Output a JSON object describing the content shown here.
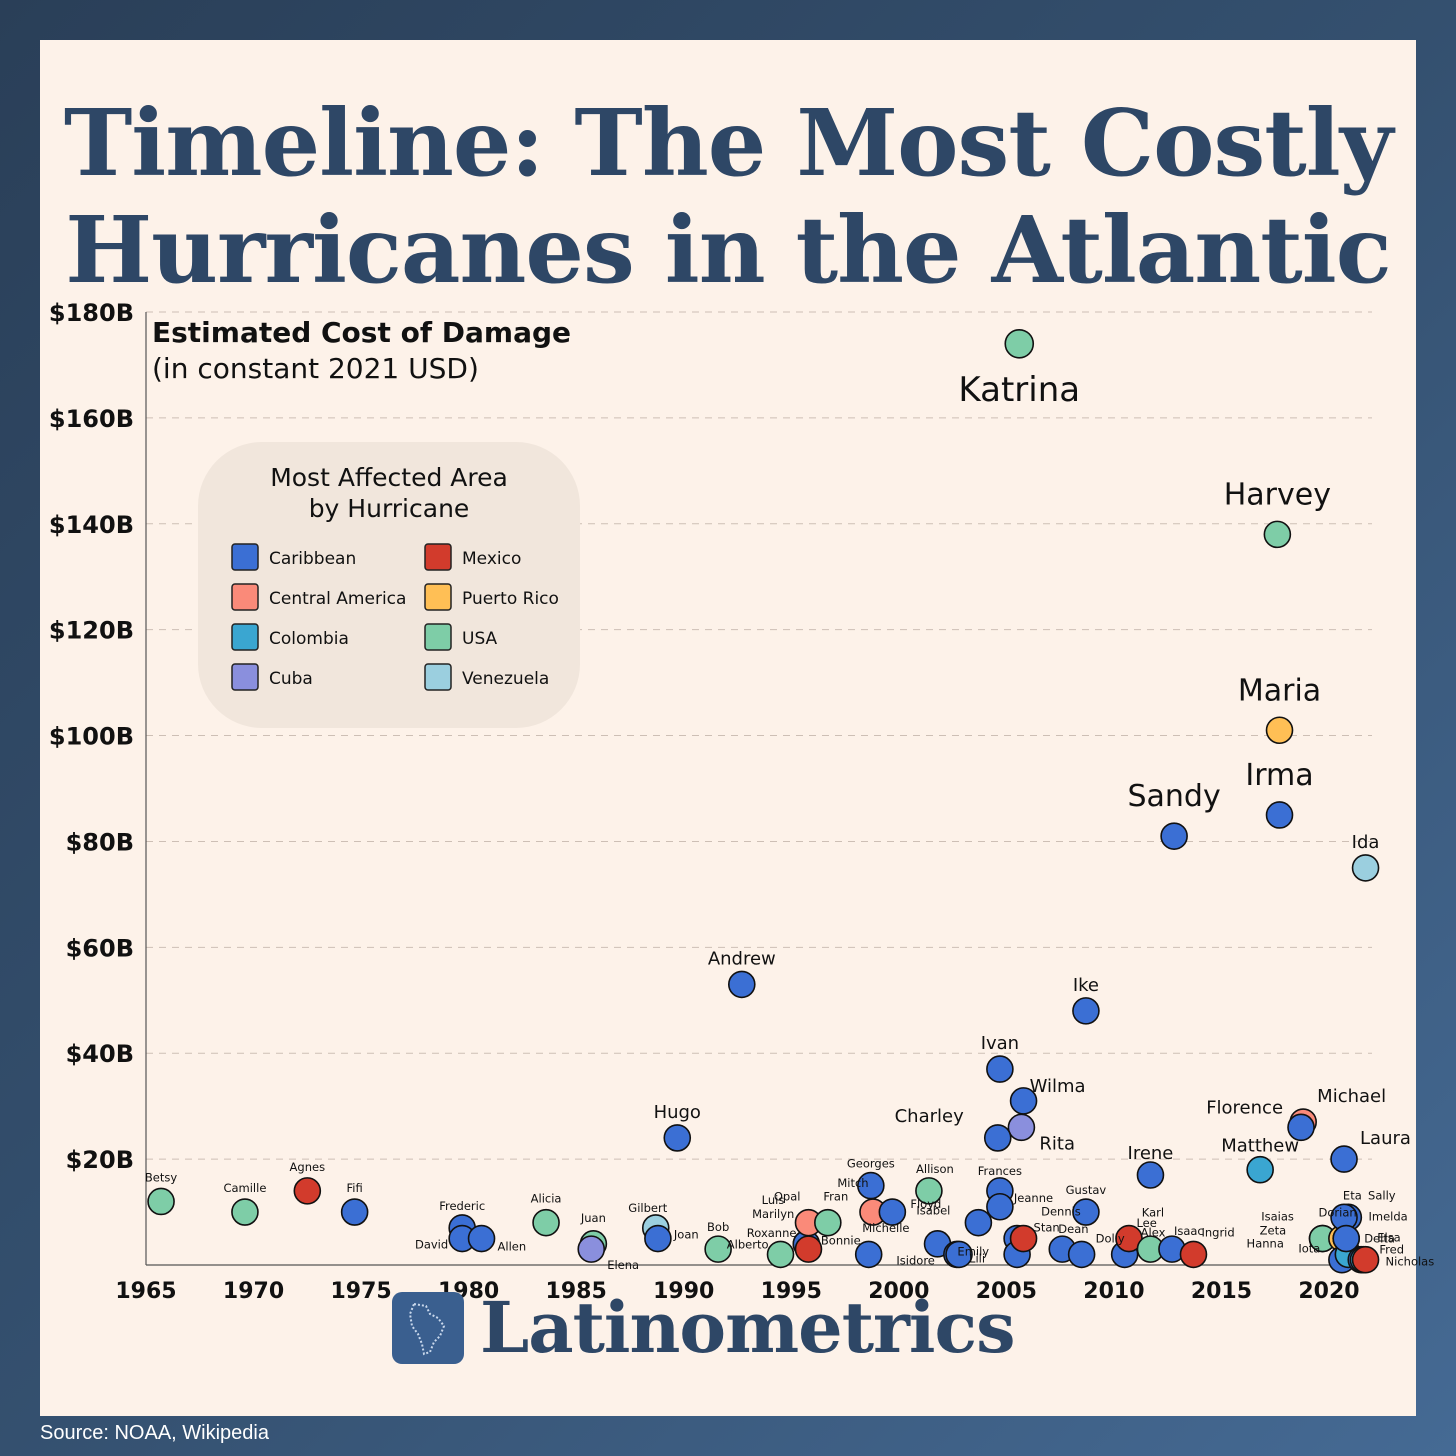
{
  "title_line1": "Timeline: The Most Costly",
  "title_line2": "Hurricanes in the Atlantic",
  "subtitle_line1": "Estimated Cost of Damage",
  "subtitle_line2": "(in constant 2021 USD)",
  "legend": {
    "title_line1": "Most Affected Area",
    "title_line2": "by Hurricane"
  },
  "brand": "Latinometrics",
  "source": "Source: NOAA, Wikipedia",
  "chart_data": {
    "type": "scatter",
    "xlim": [
      1965,
      2022
    ],
    "ylim": [
      0,
      180
    ],
    "x_ticks": [
      1965,
      1970,
      1975,
      1980,
      1985,
      1990,
      1995,
      2000,
      2005,
      2010,
      2015,
      2020
    ],
    "y_ticks": [
      {
        "v": 20,
        "label": "$20B"
      },
      {
        "v": 40,
        "label": "$40B"
      },
      {
        "v": 60,
        "label": "$60B"
      },
      {
        "v": 80,
        "label": "$80B"
      },
      {
        "v": 100,
        "label": "$100B"
      },
      {
        "v": 120,
        "label": "$120B"
      },
      {
        "v": 140,
        "label": "$140B"
      },
      {
        "v": 160,
        "label": "$160B"
      },
      {
        "v": 180,
        "label": "$180B"
      }
    ],
    "grid": "horizontal dashed",
    "legend_position": "upper-left",
    "categories": [
      {
        "name": "Caribbean",
        "color": "#3b6fd4"
      },
      {
        "name": "Mexico",
        "color": "#d23b2c"
      },
      {
        "name": "Central America",
        "color": "#fa8a79"
      },
      {
        "name": "Puerto Rico",
        "color": "#ffbf55"
      },
      {
        "name": "Colombia",
        "color": "#3aa6d1"
      },
      {
        "name": "USA",
        "color": "#7ecda7"
      },
      {
        "name": "Cuba",
        "color": "#8a8fdd"
      },
      {
        "name": "Venezuela",
        "color": "#9bcfdf"
      }
    ],
    "points": [
      {
        "name": "Katrina",
        "x": 2005.6,
        "y": 174,
        "cat": "USA",
        "size": "xl"
      },
      {
        "name": "Harvey",
        "x": 2017.6,
        "y": 138,
        "cat": "USA",
        "size": "l"
      },
      {
        "name": "Maria",
        "x": 2017.7,
        "y": 101,
        "cat": "Puerto Rico",
        "size": "l"
      },
      {
        "name": "Irma",
        "x": 2017.7,
        "y": 85,
        "cat": "Caribbean",
        "size": "l"
      },
      {
        "name": "Sandy",
        "x": 2012.8,
        "y": 81,
        "cat": "Caribbean",
        "size": "l"
      },
      {
        "name": "Ida",
        "x": 2021.7,
        "y": 75,
        "cat": "Venezuela",
        "size": "m"
      },
      {
        "name": "Andrew",
        "x": 1992.7,
        "y": 53,
        "cat": "Caribbean",
        "size": "m"
      },
      {
        "name": "Ike",
        "x": 2008.7,
        "y": 48,
        "cat": "Caribbean",
        "size": "m"
      },
      {
        "name": "Ivan",
        "x": 2004.7,
        "y": 37,
        "cat": "Caribbean",
        "size": "m"
      },
      {
        "name": "Wilma",
        "x": 2005.8,
        "y": 31,
        "cat": "Caribbean",
        "size": "m"
      },
      {
        "name": "Rita",
        "x": 2005.7,
        "y": 26,
        "cat": "Cuba",
        "size": "m"
      },
      {
        "name": "Charley",
        "x": 2004.6,
        "y": 24,
        "cat": "Caribbean",
        "size": "m"
      },
      {
        "name": "Hugo",
        "x": 1989.7,
        "y": 24,
        "cat": "Caribbean",
        "size": "m"
      },
      {
        "name": "Irene",
        "x": 2011.7,
        "y": 17,
        "cat": "Caribbean",
        "size": "m"
      },
      {
        "name": "Michael",
        "x": 2018.8,
        "y": 27,
        "cat": "Central America",
        "size": "m"
      },
      {
        "name": "Florence",
        "x": 2018.7,
        "y": 26,
        "cat": "Caribbean",
        "size": "m"
      },
      {
        "name": "Matthew",
        "x": 2016.8,
        "y": 18,
        "cat": "Colombia",
        "size": "m"
      },
      {
        "name": "Laura",
        "x": 2020.7,
        "y": 20,
        "cat": "Caribbean",
        "size": "m"
      },
      {
        "name": "Betsy",
        "x": 1965.7,
        "y": 12,
        "cat": "USA",
        "size": "s"
      },
      {
        "name": "Camille",
        "x": 1969.6,
        "y": 10,
        "cat": "USA",
        "size": "s"
      },
      {
        "name": "Agnes",
        "x": 1972.5,
        "y": 14,
        "cat": "Mexico",
        "size": "s"
      },
      {
        "name": "Fifi",
        "x": 1974.7,
        "y": 10,
        "cat": "Caribbean",
        "size": "s"
      },
      {
        "name": "Frederic",
        "x": 1979.7,
        "y": 7,
        "cat": "Caribbean",
        "size": "s"
      },
      {
        "name": "David",
        "x": 1979.7,
        "y": 5,
        "cat": "Caribbean",
        "size": "s"
      },
      {
        "name": "Allen",
        "x": 1980.6,
        "y": 5,
        "cat": "Caribbean",
        "size": "s"
      },
      {
        "name": "Alicia",
        "x": 1983.6,
        "y": 8,
        "cat": "USA",
        "size": "s"
      },
      {
        "name": "Juan",
        "x": 1985.8,
        "y": 4,
        "cat": "USA",
        "size": "s"
      },
      {
        "name": "Elena",
        "x": 1985.7,
        "y": 3,
        "cat": "Cuba",
        "size": "s"
      },
      {
        "name": "Gilbert",
        "x": 1988.7,
        "y": 7,
        "cat": "Venezuela",
        "size": "s"
      },
      {
        "name": "Joan",
        "x": 1988.8,
        "y": 5,
        "cat": "Caribbean",
        "size": "s"
      },
      {
        "name": "Bob",
        "x": 1991.6,
        "y": 3,
        "cat": "USA",
        "size": "s"
      },
      {
        "name": "Alberto",
        "x": 1994.5,
        "y": 2,
        "cat": "USA",
        "size": "s"
      },
      {
        "name": "Luis",
        "x": 1995.7,
        "y": 4,
        "cat": "Caribbean",
        "size": "s"
      },
      {
        "name": "Marilyn",
        "x": 1995.7,
        "y": 4,
        "cat": "Caribbean",
        "size": "s"
      },
      {
        "name": "Roxanne",
        "x": 1995.8,
        "y": 3,
        "cat": "Mexico",
        "size": "s"
      },
      {
        "name": "Opal",
        "x": 1995.8,
        "y": 8,
        "cat": "Central America",
        "size": "s"
      },
      {
        "name": "Fran",
        "x": 1996.7,
        "y": 8,
        "cat": "USA",
        "size": "s"
      },
      {
        "name": "Mitch",
        "x": 1998.8,
        "y": 10,
        "cat": "Central America",
        "size": "s"
      },
      {
        "name": "Georges",
        "x": 1998.7,
        "y": 15,
        "cat": "Caribbean",
        "size": "s"
      },
      {
        "name": "Bonnie",
        "x": 1998.6,
        "y": 2,
        "cat": "Caribbean",
        "size": "s"
      },
      {
        "name": "Floyd",
        "x": 1999.7,
        "y": 10,
        "cat": "Caribbean",
        "size": "s"
      },
      {
        "name": "Michelle",
        "x": 2001.8,
        "y": 4,
        "cat": "Caribbean",
        "size": "s"
      },
      {
        "name": "Allison",
        "x": 2001.4,
        "y": 14,
        "cat": "USA",
        "size": "s"
      },
      {
        "name": "Isidore",
        "x": 2002.7,
        "y": 2,
        "cat": "Caribbean",
        "size": "s"
      },
      {
        "name": "Lili",
        "x": 2002.8,
        "y": 2,
        "cat": "Caribbean",
        "size": "s"
      },
      {
        "name": "Isabel",
        "x": 2003.7,
        "y": 8,
        "cat": "Caribbean",
        "size": "s"
      },
      {
        "name": "Frances",
        "x": 2004.7,
        "y": 14,
        "cat": "Caribbean",
        "size": "s"
      },
      {
        "name": "Jeanne",
        "x": 2004.7,
        "y": 11,
        "cat": "Caribbean",
        "size": "s"
      },
      {
        "name": "Dennis",
        "x": 2005.5,
        "y": 5,
        "cat": "Caribbean",
        "size": "s"
      },
      {
        "name": "Emily",
        "x": 2005.5,
        "y": 2,
        "cat": "Caribbean",
        "size": "s"
      },
      {
        "name": "Stan",
        "x": 2005.8,
        "y": 5,
        "cat": "Mexico",
        "size": "s"
      },
      {
        "name": "Dean",
        "x": 2007.6,
        "y": 3,
        "cat": "Caribbean",
        "size": "s"
      },
      {
        "name": "Dolly",
        "x": 2008.5,
        "y": 2,
        "cat": "Caribbean",
        "size": "s"
      },
      {
        "name": "Gustav",
        "x": 2008.7,
        "y": 10,
        "cat": "Caribbean",
        "size": "s"
      },
      {
        "name": "Alex",
        "x": 2010.5,
        "y": 2,
        "cat": "Caribbean",
        "size": "s"
      },
      {
        "name": "Karl",
        "x": 2010.7,
        "y": 5,
        "cat": "Mexico",
        "size": "s"
      },
      {
        "name": "Lee",
        "x": 2011.7,
        "y": 3,
        "cat": "USA",
        "size": "s"
      },
      {
        "name": "Isaac",
        "x": 2012.7,
        "y": 3,
        "cat": "Caribbean",
        "size": "s"
      },
      {
        "name": "Ingrid",
        "x": 2013.7,
        "y": 2,
        "cat": "Mexico",
        "size": "s"
      },
      {
        "name": "Dorian",
        "x": 2019.7,
        "y": 5,
        "cat": "USA",
        "size": "s"
      },
      {
        "name": "Imelda",
        "x": 2019.7,
        "y": 5,
        "cat": "USA",
        "size": "s"
      },
      {
        "name": "Isaias",
        "x": 2020.6,
        "y": 5,
        "cat": "Puerto Rico",
        "size": "s"
      },
      {
        "name": "Zeta",
        "x": 2020.8,
        "y": 5,
        "cat": "Caribbean",
        "size": "s"
      },
      {
        "name": "Hanna",
        "x": 2020.6,
        "y": 1,
        "cat": "Caribbean",
        "size": "s"
      },
      {
        "name": "Iota",
        "x": 2020.9,
        "y": 2,
        "cat": "Colombia",
        "size": "s"
      },
      {
        "name": "Eta",
        "x": 2020.9,
        "y": 9,
        "cat": "Caribbean",
        "size": "s"
      },
      {
        "name": "Sally",
        "x": 2020.7,
        "y": 9,
        "cat": "Caribbean",
        "size": "s"
      },
      {
        "name": "Delta",
        "x": 2020.8,
        "y": 5,
        "cat": "Caribbean",
        "size": "s"
      },
      {
        "name": "Elsa",
        "x": 2021.5,
        "y": 1,
        "cat": "Caribbean",
        "size": "s"
      },
      {
        "name": "Fred",
        "x": 2021.6,
        "y": 1,
        "cat": "Colombia",
        "size": "s"
      },
      {
        "name": "Nicholas",
        "x": 2021.7,
        "y": 1,
        "cat": "Mexico",
        "size": "s"
      }
    ]
  }
}
